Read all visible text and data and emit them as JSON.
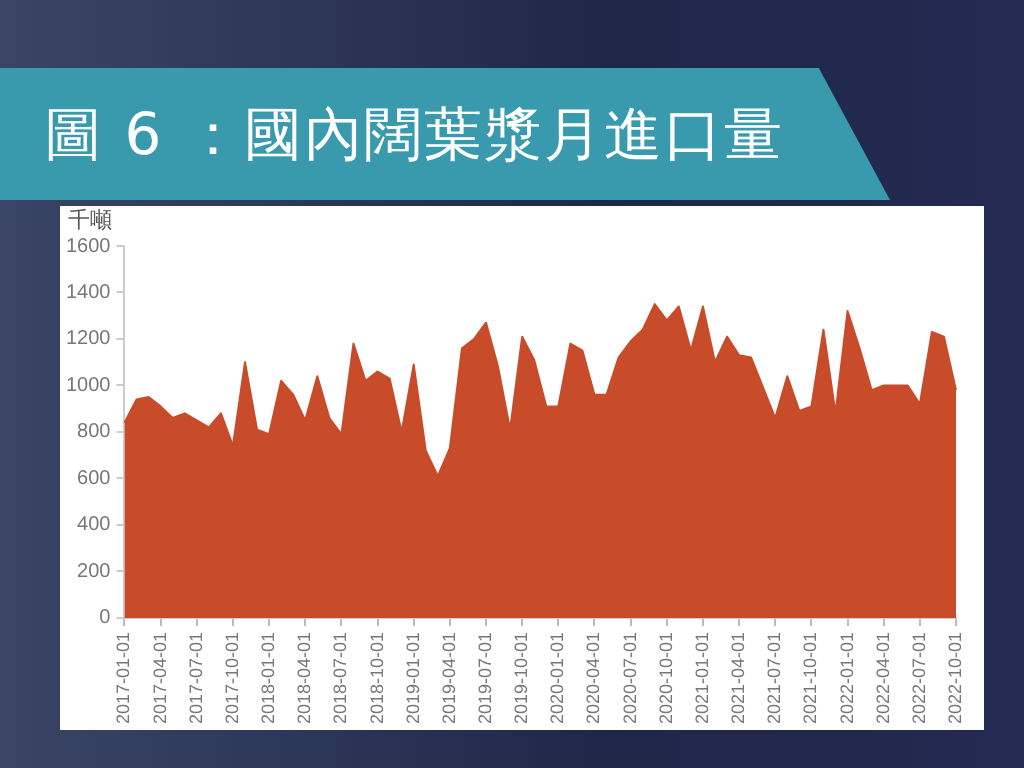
{
  "chart_data": {
    "type": "area",
    "title": "圖 6 ：國內闊葉漿月進口量",
    "ylabel": "千噸",
    "categories": [
      "2017-01-01",
      null,
      null,
      "2017-04-01",
      null,
      null,
      "2017-07-01",
      null,
      null,
      "2017-10-01",
      null,
      null,
      "2018-01-01",
      null,
      null,
      "2018-04-01",
      null,
      null,
      "2018-07-01",
      null,
      null,
      "2018-10-01",
      null,
      null,
      "2019-01-01",
      null,
      null,
      "2019-04-01",
      null,
      null,
      "2019-07-01",
      null,
      null,
      "2019-10-01",
      null,
      null,
      "2020-01-01",
      null,
      null,
      "2020-04-01",
      null,
      null,
      "2020-07-01",
      null,
      null,
      "2020-10-01",
      null,
      null,
      "2021-01-01",
      null,
      null,
      "2021-04-01",
      null,
      null,
      "2021-07-01",
      null,
      null,
      "2021-10-01",
      null,
      null,
      "2022-01-01",
      null,
      null,
      "2022-04-01",
      null,
      null,
      "2022-07-01",
      null,
      null,
      "2022-10-01"
    ],
    "values": [
      840,
      940,
      950,
      910,
      860,
      880,
      850,
      820,
      880,
      740,
      1100,
      810,
      790,
      1020,
      960,
      850,
      1040,
      860,
      790,
      1180,
      1020,
      1060,
      1030,
      800,
      1090,
      720,
      610,
      730,
      1160,
      1200,
      1270,
      1080,
      810,
      1210,
      1110,
      910,
      910,
      1180,
      1150,
      960,
      960,
      1120,
      1190,
      1240,
      1350,
      1280,
      1340,
      1150,
      1340,
      1100,
      1210,
      1130,
      1120,
      990,
      860,
      1040,
      890,
      910,
      1240,
      880,
      1320,
      1160,
      980,
      1000,
      1000,
      1000,
      920,
      1230,
      1210,
      980
    ],
    "color": "#c84b2a",
    "ylim": [
      0,
      1600
    ],
    "yticks": [
      0,
      200,
      400,
      600,
      800,
      1000,
      1200,
      1400,
      1600
    ],
    "grid": false,
    "legend": false
  }
}
